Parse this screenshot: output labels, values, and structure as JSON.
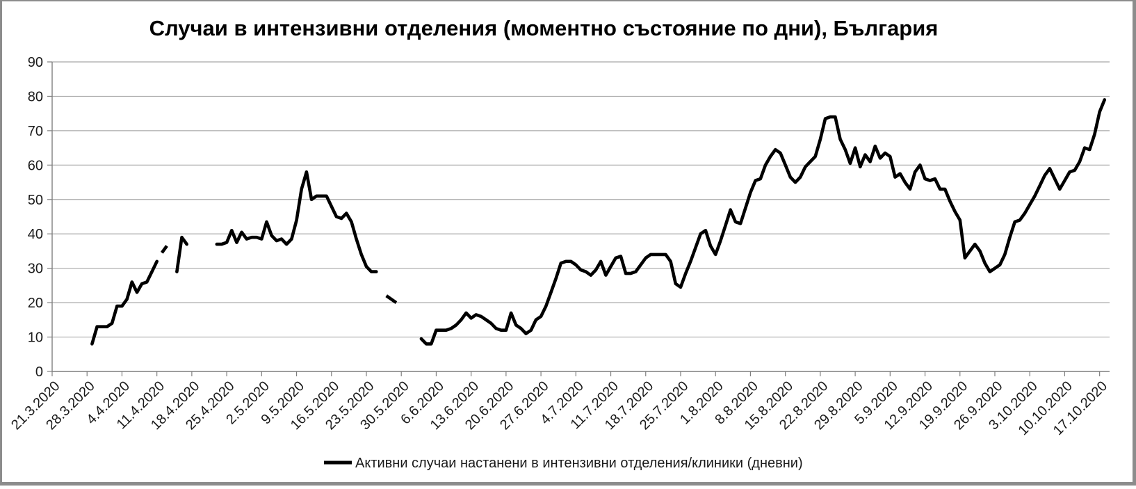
{
  "chart_data": {
    "type": "line",
    "title": "Случаи в интензивни отделения (моментно състояние по дни), България",
    "legend_label": "Активни случаи настанени в интензивни отделения/клиники (дневни)",
    "grid": "horizontal",
    "legend_position": "bottom",
    "ylim": [
      0,
      90
    ],
    "y_ticks": [
      0,
      10,
      20,
      30,
      40,
      50,
      60,
      70,
      80,
      90
    ],
    "x_axis": {
      "start_label": "21.3.2020",
      "tick_step_days": 7,
      "range_days": [
        0,
        212
      ]
    },
    "x_tick_labels": [
      "21.3.2020",
      "28.3.2020",
      "4.4.2020",
      "11.4.2020",
      "18.4.2020",
      "25.4.2020",
      "2.5.2020",
      "9.5.2020",
      "16.5.2020",
      "23.5.2020",
      "30.5.2020",
      "6.6.2020",
      "13.6.2020",
      "20.6.2020",
      "27.6.2020",
      "4.7.2020",
      "11.7.2020",
      "18.7.2020",
      "25.7.2020",
      "1.8.2020",
      "8.8.2020",
      "15.8.2020",
      "22.8.2020",
      "29.8.2020",
      "5.9.2020",
      "12.9.2020",
      "19.9.2020",
      "26.9.2020",
      "3.10.2020",
      "10.10.2020",
      "17.10.2020"
    ],
    "colors": {
      "series": "#000000",
      "grid": "#a8a8a8",
      "axis": "#7f7f7f",
      "tick_text": "#1a1a1a",
      "title_text": "#000000",
      "frame": "#8c8c8c",
      "background": "#ffffff"
    },
    "series": [
      {
        "name": "Активни случаи настанени в интензивни отделения/клиники (дневни)",
        "color": "#000000",
        "x_unit": "days_since_21.3.2020",
        "segments": [
          {
            "style": "solid",
            "points": [
              [
                8,
                8
              ],
              [
                9,
                13
              ],
              [
                10,
                13
              ],
              [
                11,
                13
              ],
              [
                12,
                14
              ],
              [
                13,
                19
              ],
              [
                14,
                19
              ],
              [
                15,
                21
              ],
              [
                16,
                26
              ],
              [
                17,
                23
              ],
              [
                18,
                25.5
              ],
              [
                19,
                26
              ],
              [
                20,
                29
              ],
              [
                21,
                32
              ]
            ]
          },
          {
            "style": "dash",
            "points": [
              [
                22,
                34.5
              ],
              [
                23,
                36.5
              ]
            ]
          },
          {
            "style": "solid",
            "points": [
              [
                25,
                29
              ],
              [
                26,
                39
              ],
              [
                27,
                37
              ]
            ]
          },
          {
            "style": "solid",
            "points": [
              [
                33,
                37
              ],
              [
                34,
                37
              ],
              [
                35,
                37.5
              ],
              [
                36,
                41
              ],
              [
                37,
                37.5
              ],
              [
                38,
                40.5
              ],
              [
                39,
                38.5
              ],
              [
                40,
                39
              ],
              [
                41,
                39
              ],
              [
                42,
                38.5
              ],
              [
                43,
                43.5
              ],
              [
                44,
                39.5
              ],
              [
                45,
                38
              ],
              [
                46,
                38.5
              ],
              [
                47,
                37
              ],
              [
                48,
                38.5
              ],
              [
                49,
                44
              ],
              [
                50,
                53
              ],
              [
                51,
                58
              ],
              [
                52,
                50
              ],
              [
                53,
                51
              ],
              [
                54,
                51
              ],
              [
                55,
                51
              ],
              [
                56,
                48
              ],
              [
                57,
                45
              ],
              [
                58,
                44.5
              ],
              [
                59,
                46
              ],
              [
                60,
                43.5
              ],
              [
                61,
                38.5
              ],
              [
                62,
                34
              ],
              [
                63,
                30.5
              ],
              [
                64,
                29
              ],
              [
                65,
                29
              ]
            ]
          },
          {
            "style": "dash",
            "points": [
              [
                67,
                22
              ],
              [
                69,
                20
              ]
            ]
          },
          {
            "style": "solid",
            "points": [
              [
                74,
                9.5
              ],
              [
                75,
                8
              ],
              [
                76,
                8
              ],
              [
                77,
                12
              ],
              [
                78,
                12
              ],
              [
                79,
                12
              ],
              [
                80,
                12.5
              ],
              [
                81,
                13.5
              ],
              [
                82,
                15
              ],
              [
                83,
                17
              ],
              [
                84,
                15.5
              ],
              [
                85,
                16.5
              ],
              [
                86,
                16
              ],
              [
                87,
                15
              ],
              [
                88,
                14
              ],
              [
                89,
                12.5
              ],
              [
                90,
                12
              ],
              [
                91,
                12
              ],
              [
                92,
                17
              ],
              [
                93,
                13.5
              ],
              [
                94,
                12.5
              ],
              [
                95,
                11
              ],
              [
                96,
                12
              ],
              [
                97,
                15
              ],
              [
                98,
                16
              ],
              [
                99,
                19
              ],
              [
                100,
                23
              ],
              [
                101,
                27
              ],
              [
                102,
                31.5
              ],
              [
                103,
                32
              ],
              [
                104,
                32
              ],
              [
                105,
                31
              ],
              [
                106,
                29.5
              ],
              [
                107,
                29
              ],
              [
                108,
                28
              ],
              [
                109,
                29.5
              ],
              [
                110,
                32
              ],
              [
                111,
                28
              ],
              [
                112,
                30.5
              ],
              [
                113,
                33
              ],
              [
                114,
                33.5
              ],
              [
                115,
                28.5
              ],
              [
                116,
                28.5
              ],
              [
                117,
                29
              ],
              [
                118,
                31
              ],
              [
                119,
                33
              ],
              [
                120,
                34
              ],
              [
                121,
                34
              ],
              [
                122,
                34
              ],
              [
                123,
                34
              ],
              [
                124,
                32
              ],
              [
                125,
                25.5
              ],
              [
                126,
                24.5
              ],
              [
                127,
                28.5
              ],
              [
                128,
                32
              ],
              [
                129,
                36
              ],
              [
                130,
                40
              ],
              [
                131,
                41
              ],
              [
                132,
                36.5
              ],
              [
                133,
                34
              ],
              [
                134,
                38
              ],
              [
                135,
                42.5
              ],
              [
                136,
                47
              ],
              [
                137,
                43.5
              ],
              [
                138,
                43
              ],
              [
                139,
                47.5
              ],
              [
                140,
                52
              ],
              [
                141,
                55.5
              ],
              [
                142,
                56
              ],
              [
                143,
                60
              ],
              [
                144,
                62.5
              ],
              [
                145,
                64.5
              ],
              [
                146,
                63.5
              ],
              [
                147,
                60
              ],
              [
                148,
                56.5
              ],
              [
                149,
                55
              ],
              [
                150,
                56.5
              ],
              [
                151,
                59.5
              ],
              [
                152,
                61
              ],
              [
                153,
                62.5
              ],
              [
                154,
                67.5
              ],
              [
                155,
                73.5
              ],
              [
                156,
                74
              ],
              [
                157,
                74
              ],
              [
                158,
                67.5
              ],
              [
                159,
                64.5
              ],
              [
                160,
                60.5
              ],
              [
                161,
                65
              ],
              [
                162,
                59.5
              ],
              [
                163,
                63
              ],
              [
                164,
                61
              ],
              [
                165,
                65.5
              ],
              [
                166,
                62
              ],
              [
                167,
                63.5
              ],
              [
                168,
                62.5
              ],
              [
                169,
                56.5
              ],
              [
                170,
                57.5
              ],
              [
                171,
                55
              ],
              [
                172,
                53
              ],
              [
                173,
                58
              ],
              [
                174,
                60
              ],
              [
                175,
                56
              ],
              [
                176,
                55.5
              ],
              [
                177,
                56
              ],
              [
                178,
                53
              ],
              [
                179,
                53
              ],
              [
                180,
                49.5
              ],
              [
                181,
                46.5
              ],
              [
                182,
                44
              ],
              [
                183,
                33
              ],
              [
                184,
                35
              ],
              [
                185,
                37
              ],
              [
                186,
                35
              ],
              [
                187,
                31.5
              ],
              [
                188,
                29
              ],
              [
                189,
                30
              ],
              [
                190,
                31
              ],
              [
                191,
                34
              ],
              [
                192,
                39
              ],
              [
                193,
                43.5
              ],
              [
                194,
                44
              ],
              [
                195,
                46
              ],
              [
                196,
                48.5
              ],
              [
                197,
                51
              ],
              [
                198,
                54
              ],
              [
                199,
                57
              ],
              [
                200,
                59
              ],
              [
                201,
                56
              ],
              [
                202,
                53
              ],
              [
                203,
                55.5
              ],
              [
                204,
                58
              ],
              [
                205,
                58.5
              ],
              [
                206,
                61
              ],
              [
                207,
                65
              ],
              [
                208,
                64.5
              ],
              [
                209,
                69
              ],
              [
                210,
                75.5
              ],
              [
                211,
                79
              ]
            ]
          }
        ]
      }
    ]
  }
}
